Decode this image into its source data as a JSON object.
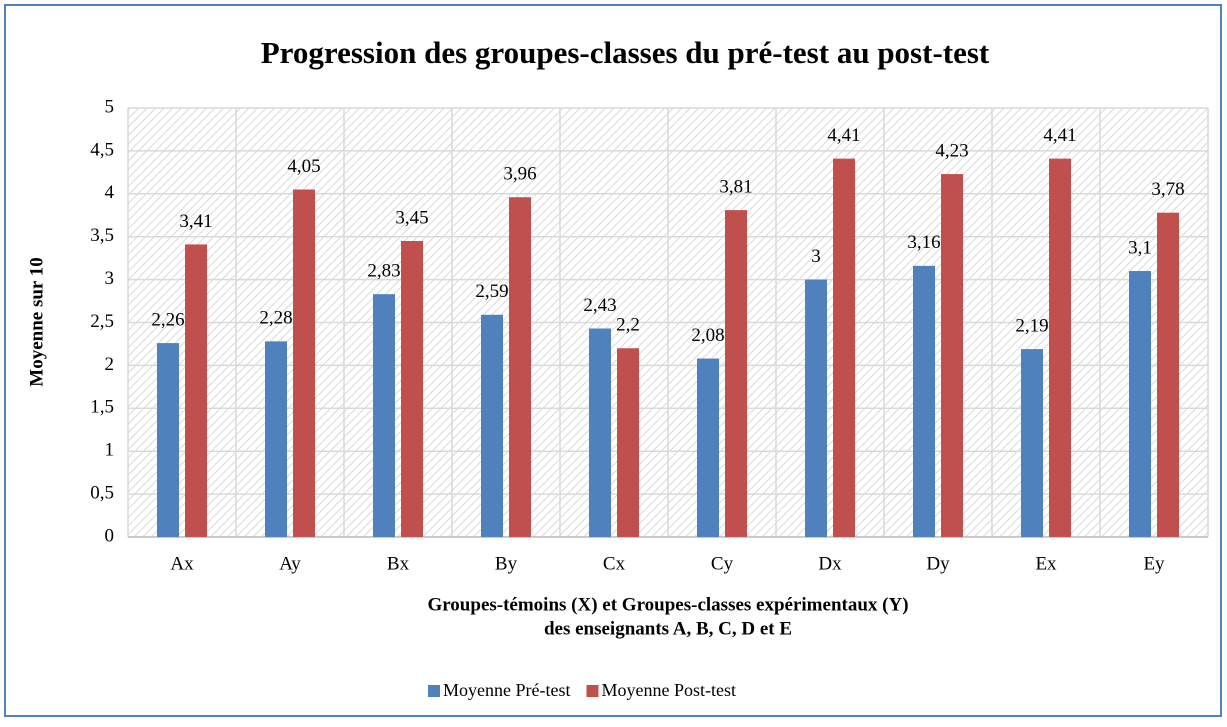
{
  "chart_data": {
    "type": "bar",
    "title": "Progression des groupes-classes du pré-test au post-test",
    "ylabel": "Moyenne sur 10",
    "xlabel": [
      "Groupes-témoins (X) et Groupes-classes expérimentaux (Y)",
      "des enseignants A, B, C, D et E"
    ],
    "categories": [
      "Ax",
      "Ay",
      "Bx",
      "By",
      "Cx",
      "Cy",
      "Dx",
      "Dy",
      "Ex",
      "Ey"
    ],
    "series": [
      {
        "name": "Moyenne Pré-test",
        "color": "#4f81bd",
        "values": [
          2.26,
          2.28,
          2.83,
          2.59,
          2.43,
          2.08,
          3,
          3.16,
          2.19,
          3.1
        ],
        "value_labels": [
          "2,26",
          "2,28",
          "2,83",
          "2,59",
          "2,43",
          "2,08",
          "3",
          "3,16",
          "2,19",
          "3,1"
        ]
      },
      {
        "name": "Moyenne Post-test",
        "color": "#c0504d",
        "values": [
          3.41,
          4.05,
          3.45,
          3.96,
          2.2,
          3.81,
          4.41,
          4.23,
          4.41,
          3.78
        ],
        "value_labels": [
          "3,41",
          "4,05",
          "3,45",
          "3,96",
          "2,2",
          "3,81",
          "4,41",
          "4,23",
          "4,41",
          "3,78"
        ]
      }
    ],
    "ylim": [
      0,
      5
    ],
    "yticks": [
      0,
      {
        "value": 0.5,
        "label": "0,5"
      },
      1,
      {
        "value": 1.5,
        "label": "1,5"
      },
      2,
      {
        "value": 2.5,
        "label": "2,5"
      },
      3,
      {
        "value": 3.5,
        "label": "3,5"
      },
      4,
      {
        "value": 4.5,
        "label": "4,5"
      },
      5
    ],
    "grid": true,
    "legend": "bottom"
  }
}
